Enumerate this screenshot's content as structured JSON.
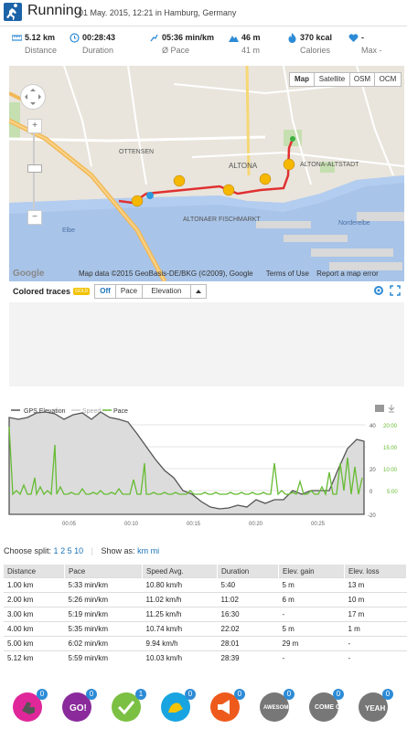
{
  "header": {
    "title": "Running",
    "subtitle": "01 May. 2015, 12:21 in Hamburg, Germany"
  },
  "stats": [
    {
      "value": "5.12 km",
      "label": "Distance",
      "icon": "ruler-icon"
    },
    {
      "value": "00:28:43",
      "label": "Duration",
      "icon": "clock-icon"
    },
    {
      "value": "05:36 min/km",
      "label": "Ø Pace",
      "icon": "pace-icon"
    },
    {
      "value": "46 m",
      "label": "41 m",
      "icon": "mountain-icon"
    },
    {
      "value": "370 kcal",
      "label": "Calories",
      "icon": "flame-icon"
    },
    {
      "value": "-",
      "label": "Max -",
      "icon": "heart-icon"
    }
  ],
  "map": {
    "buttons": [
      "Map",
      "Satellite",
      "OSM",
      "OCM"
    ],
    "active": "Map",
    "attribution": "Map data ©2015 GeoBasis-DE/BKG (©2009), Google",
    "terms": "Terms of Use",
    "report": "Report a map error",
    "google_logo": "Google",
    "places": {
      "ottensen": "OTTENSEN",
      "altona": "ALTONA",
      "altona_altstadt": "ALTONA-ALTSTADT",
      "altonaer_fischmarkt": "ALTONAER\nFISCHMARKT",
      "elbe": "Elbe",
      "norderelbe": "Norderelbe"
    }
  },
  "traces": {
    "label": "Colored traces",
    "badge": "GOLD",
    "options": [
      "Off",
      "Pace",
      "Elevation"
    ],
    "active": "Off"
  },
  "chart_data": {
    "type": "line",
    "legend": [
      "GPS Elevation",
      "Speed",
      "Pace"
    ],
    "x_ticks": [
      "00:05",
      "00:10",
      "00:15",
      "00:20",
      "00:25"
    ],
    "y_left_ticks": [
      "40",
      "20",
      "0",
      "-20"
    ],
    "y_right_ticks": [
      "20:00",
      "15:00",
      "10:00",
      "5:00"
    ],
    "colors": {
      "elevation": "#555555",
      "pace": "#66bb33",
      "speed": "#cccccc"
    }
  },
  "split": {
    "label": "Choose split:",
    "options": [
      "1",
      "2",
      "5",
      "10"
    ],
    "show_label": "Show as:",
    "units": [
      "km",
      "mi"
    ]
  },
  "table": {
    "headers": [
      "Distance",
      "Pace",
      "Speed Avg.",
      "Duration",
      "Elev. gain",
      "Elev. loss"
    ],
    "rows": [
      [
        "1.00 km",
        "5:33 min/km",
        "10.80 km/h",
        "5:40",
        "5 m",
        "13 m"
      ],
      [
        "2.00 km",
        "5:26 min/km",
        "11.02 km/h",
        "11:02",
        "6 m",
        "10 m"
      ],
      [
        "3.00 km",
        "5:19 min/km",
        "11.25 km/h",
        "16:30",
        "-",
        "17 m"
      ],
      [
        "4.00 km",
        "5:35 min/km",
        "10.74 km/h",
        "22:02",
        "5 m",
        "1 m"
      ],
      [
        "5.00 km",
        "6:02 min/km",
        "9.94 km/h",
        "28:01",
        "29 m",
        "-"
      ],
      [
        "5.12 km",
        "5:59 min/km",
        "10.03 km/h",
        "28:39",
        "-",
        "-"
      ]
    ]
  },
  "badges": [
    {
      "name": "thumbs-up",
      "count": "0",
      "color": "#e0279a"
    },
    {
      "name": "go",
      "count": "0",
      "color": "#8a2a9b"
    },
    {
      "name": "i-like-it",
      "count": "1",
      "color": "#7bc043"
    },
    {
      "name": "muscle",
      "count": "0",
      "color": "#18a4e0"
    },
    {
      "name": "megaphone",
      "count": "0",
      "color": "#ee5a1c"
    },
    {
      "name": "awesome",
      "count": "0",
      "color": "#777777",
      "badge": "GOLD"
    },
    {
      "name": "come-on",
      "count": "0",
      "color": "#777777",
      "badge": "GOLD"
    },
    {
      "name": "yeah",
      "count": "0",
      "color": "#777777",
      "badge": "GOLD"
    }
  ]
}
